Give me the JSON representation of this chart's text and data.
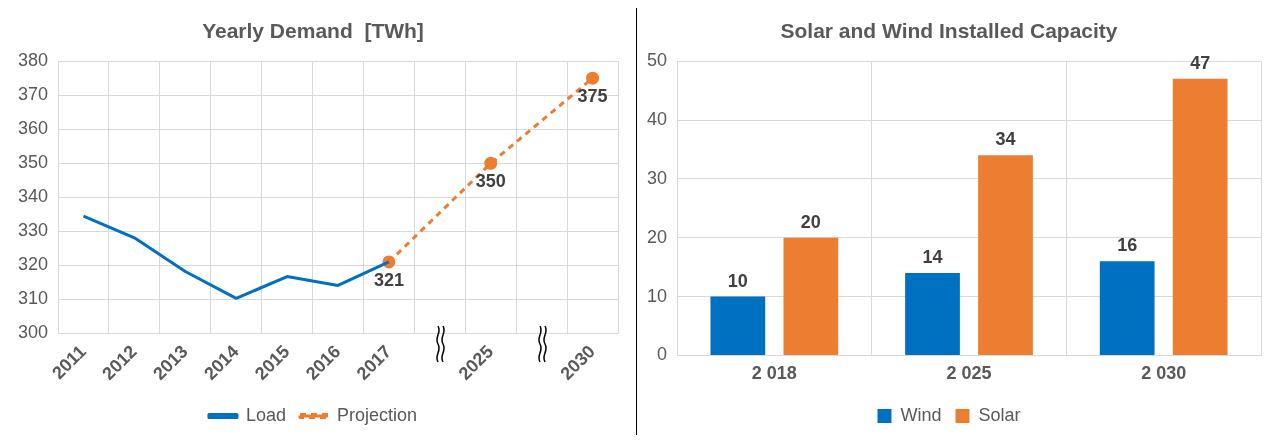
{
  "chart_data": [
    {
      "type": "line",
      "title": "Yearly Demand  [TWh]",
      "categories": [
        "2011",
        "2012",
        "2013",
        "2014",
        "2015",
        "2016",
        "2017",
        null,
        "2025",
        null,
        "2030"
      ],
      "ylim": [
        300,
        380
      ],
      "yticks": [
        300,
        310,
        320,
        330,
        340,
        350,
        360,
        370,
        380
      ],
      "grid": true,
      "legend": "bottom",
      "series": [
        {
          "name": "Load",
          "color": "#0070c0",
          "line_style": "solid",
          "marker": "none",
          "values": [
            334.5,
            328.1,
            318.2,
            310.3,
            316.7,
            314.1,
            321,
            null,
            null,
            null,
            null
          ],
          "value_labels": [
            null,
            null,
            null,
            null,
            null,
            null,
            "321",
            null,
            null,
            null,
            null
          ]
        },
        {
          "name": "Projection",
          "color": "#ed7d31",
          "line_style": "dashed",
          "marker": "circle",
          "values": [
            null,
            null,
            null,
            null,
            null,
            null,
            321,
            null,
            350,
            null,
            375
          ],
          "value_labels": [
            null,
            null,
            null,
            null,
            null,
            null,
            null,
            null,
            "350",
            null,
            "375"
          ]
        }
      ]
    },
    {
      "type": "bar",
      "title": "Solar and Wind Installed Capacity",
      "categories": [
        "2 018",
        "2 025",
        "2 030"
      ],
      "ylim": [
        0,
        50
      ],
      "yticks": [
        0,
        10,
        20,
        30,
        40,
        50
      ],
      "grid": true,
      "legend": "bottom",
      "data_labels": true,
      "series": [
        {
          "name": "Wind",
          "color": "#0070c0",
          "values": [
            10,
            14,
            16
          ]
        },
        {
          "name": "Solar",
          "color": "#ed7d31",
          "values": [
            20,
            34,
            47
          ]
        }
      ]
    }
  ]
}
